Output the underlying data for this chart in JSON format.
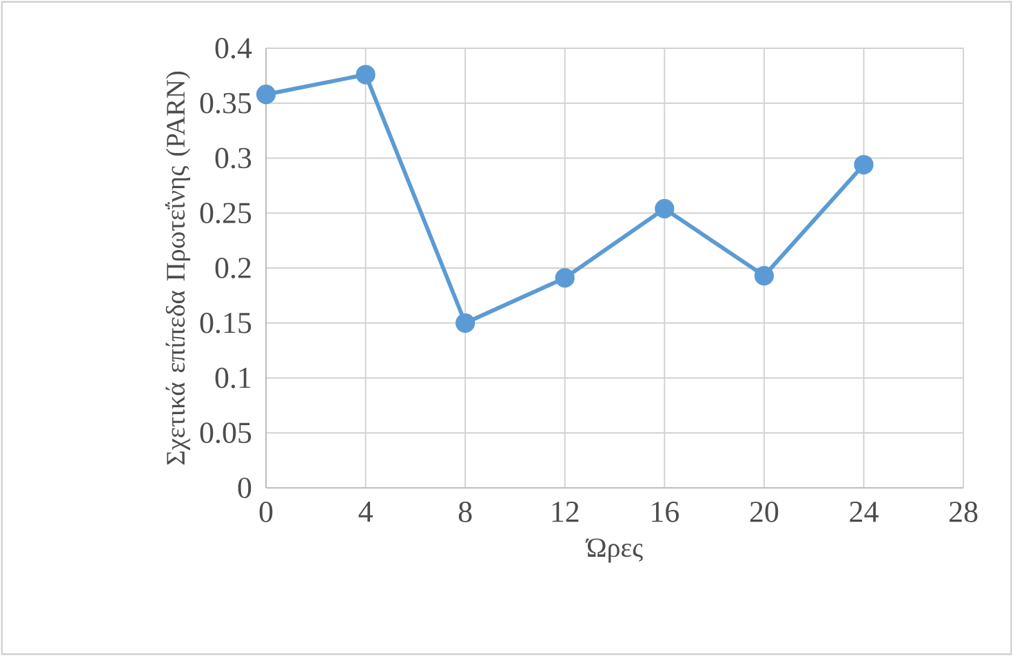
{
  "chart_data": {
    "type": "line",
    "xlabel": "Ώρες",
    "ylabel": "Σχετικά επίπεδα Πρωτεΐνης (PARN)",
    "x": [
      0,
      4,
      8,
      12,
      16,
      20,
      24
    ],
    "series": [
      {
        "color": "#5b9bd5",
        "values": [
          0.358,
          0.376,
          0.15,
          0.191,
          0.254,
          0.193,
          0.294
        ]
      }
    ],
    "xlim": [
      0,
      28
    ],
    "xticks": [
      0,
      4,
      8,
      12,
      16,
      20,
      24,
      28
    ],
    "ylim": [
      0,
      0.4
    ],
    "yticks": [
      0,
      0.05,
      0.1,
      0.15,
      0.2,
      0.25,
      0.3,
      0.35,
      0.4
    ],
    "grid": true,
    "marker": "circle",
    "line_style": "solid"
  }
}
